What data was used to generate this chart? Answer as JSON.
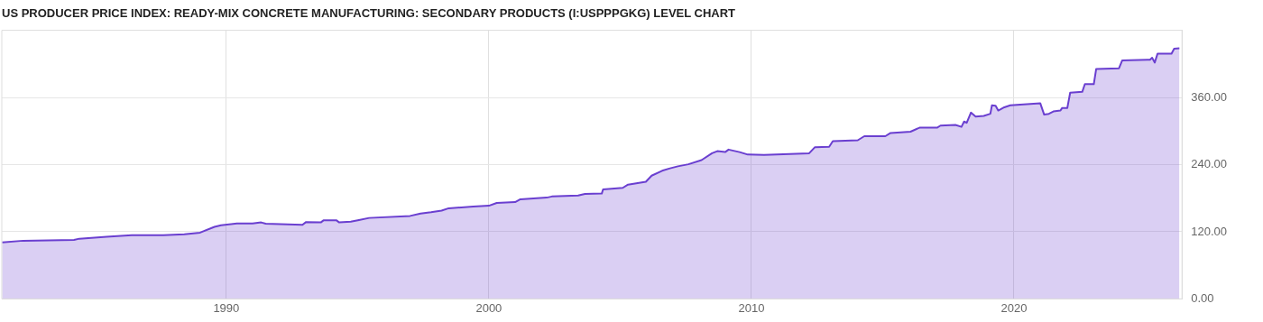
{
  "chart_data": {
    "type": "area",
    "title": "US PRODUCER PRICE INDEX: READY-MIX CONCRETE MANUFACTURING: SECONDARY PRODUCTS (I:USPPPGKG) LEVEL CHART",
    "x": [
      1981.46,
      1982.26,
      1984.2,
      1984.4,
      1985.44,
      1986.4,
      1987.6,
      1988.4,
      1989.0,
      1989.55,
      1989.8,
      1990.4,
      1991.0,
      1991.33,
      1991.5,
      1992.9,
      1993.04,
      1993.6,
      1993.7,
      1994.2,
      1994.3,
      1994.74,
      1995.05,
      1995.44,
      1997.0,
      1997.4,
      1997.8,
      1998.2,
      1998.47,
      1999.4,
      2000.0,
      2000.3,
      2001.0,
      2001.2,
      2002.2,
      2002.4,
      2003.4,
      2003.66,
      2004.3,
      2004.35,
      2005.1,
      2005.3,
      2005.98,
      2006.2,
      2006.6,
      2006.9,
      2007.2,
      2007.6,
      2008.1,
      2008.5,
      2008.7,
      2009.0,
      2009.13,
      2009.55,
      2009.86,
      2010.48,
      2012.2,
      2012.42,
      2012.96,
      2013.1,
      2014.05,
      2014.3,
      2015.1,
      2015.3,
      2016.06,
      2016.4,
      2017.07,
      2017.2,
      2017.77,
      2018.0,
      2018.1,
      2018.2,
      2018.36,
      2018.54,
      2018.85,
      2019.1,
      2019.16,
      2019.3,
      2019.4,
      2019.63,
      2019.86,
      2021.0,
      2021.15,
      2021.33,
      2021.5,
      2021.77,
      2021.83,
      2022.03,
      2022.14,
      2022.6,
      2022.7,
      2023.04,
      2023.13,
      2024.0,
      2024.12,
      2025.18,
      2025.26,
      2025.36,
      2025.47,
      2026.0,
      2026.1,
      2026.3
    ],
    "series": [
      {
        "color": "#6a3fd0",
        "values": [
          101,
          104,
          105.4,
          107.6,
          111,
          114,
          114,
          115.6,
          118.5,
          128.7,
          131.6,
          135,
          135,
          136.7,
          134.5,
          132.3,
          137.4,
          136.7,
          140.3,
          140.3,
          136.7,
          138,
          141,
          144.7,
          148.3,
          152.7,
          154.9,
          157.8,
          162,
          165,
          166.5,
          171.6,
          173,
          178,
          181,
          183,
          184.7,
          187.6,
          188.3,
          195.6,
          198.5,
          204.3,
          209.4,
          220.3,
          229,
          233.4,
          237,
          240.6,
          248,
          260.3,
          264,
          262.4,
          266.8,
          262.4,
          258,
          257.4,
          260.3,
          271.2,
          271.9,
          282,
          283.5,
          290.8,
          290.8,
          296.6,
          298.8,
          306,
          306,
          309.7,
          311,
          307.5,
          317,
          314.8,
          333,
          325.7,
          327,
          330.8,
          346,
          345.3,
          336.6,
          342.4,
          346,
          349.7,
          329.3,
          330.8,
          335,
          336.6,
          341,
          341,
          368.6,
          370,
          383.9,
          383.9,
          410.8,
          412.2,
          426,
          427.5,
          431,
          422.4,
          438.4,
          438.4,
          447,
          447.8
        ]
      }
    ],
    "xlim": [
      1981.45,
      2026.4
    ],
    "xticks": [
      1990,
      2000,
      2010,
      2020
    ],
    "ylim": [
      0,
      480
    ],
    "yticks": [
      {
        "value": 0,
        "label": "0.00"
      },
      {
        "value": 120,
        "label": "120.00"
      },
      {
        "value": 240,
        "label": "240.00"
      },
      {
        "value": 360,
        "label": "360.00"
      }
    ],
    "grid": true,
    "legend": false,
    "marker": "none",
    "line_style": "solid"
  }
}
